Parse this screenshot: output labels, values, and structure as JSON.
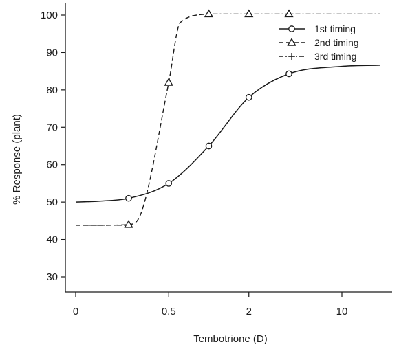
{
  "chart_data": {
    "type": "line",
    "title": "",
    "xlabel": "Tembotrione (D)",
    "ylabel": "% Response (plant)",
    "x_ticks": [
      {
        "value": 0,
        "label": "0"
      },
      {
        "value": 0.5,
        "label": "0.5"
      },
      {
        "value": 2,
        "label": "2"
      },
      {
        "value": 10,
        "label": "10"
      }
    ],
    "y_ticks": [
      30,
      40,
      50,
      60,
      70,
      80,
      90,
      100
    ],
    "ylim": [
      27,
      103
    ],
    "grid": false,
    "legend_position": "top-right",
    "series": [
      {
        "name": "1st timing",
        "line_style": "solid",
        "marker": "circle",
        "x": [
          0.25,
          0.5,
          1,
          2,
          4
        ],
        "y": [
          51,
          55,
          65,
          78,
          84.3
        ]
      },
      {
        "name": "2nd timing",
        "line_style": "dashed",
        "marker": "triangle",
        "x": [
          0.25,
          0.5,
          1,
          2,
          4
        ],
        "y": [
          44,
          82,
          100.3,
          100.3,
          100.3
        ]
      },
      {
        "name": "3rd timing",
        "line_style": "dash-dot",
        "marker": "plus",
        "x": [],
        "y": []
      }
    ]
  }
}
